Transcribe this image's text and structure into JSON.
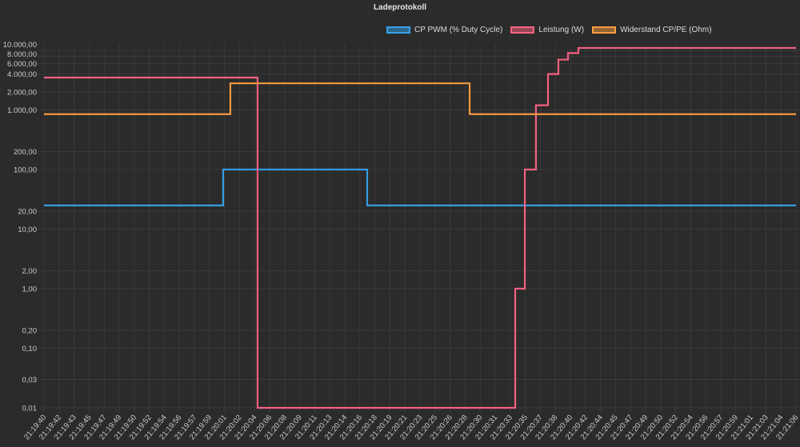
{
  "chart_data": {
    "type": "line",
    "title": "Ladeprotokoll",
    "yscale": "log",
    "ylim": [
      0.01,
      10000
    ],
    "y_ticks": [
      {
        "v": 10000,
        "label": "10.000,00"
      },
      {
        "v": 8000,
        "label": "8.000,00"
      },
      {
        "v": 6000,
        "label": "6.000,00"
      },
      {
        "v": 4000,
        "label": "4.000,00"
      },
      {
        "v": 2000,
        "label": "2.000,00"
      },
      {
        "v": 1000,
        "label": "1.000,00"
      },
      {
        "v": 200,
        "label": "200,00"
      },
      {
        "v": 100,
        "label": "100,00"
      },
      {
        "v": 20,
        "label": "20,00"
      },
      {
        "v": 10,
        "label": "10,00"
      },
      {
        "v": 2,
        "label": "2,00"
      },
      {
        "v": 1,
        "label": "1,00"
      },
      {
        "v": 0.2,
        "label": "0,20"
      },
      {
        "v": 0.1,
        "label": "0,10"
      },
      {
        "v": 0.03,
        "label": "0,03"
      },
      {
        "v": 0.01,
        "label": "0,01"
      }
    ],
    "x_labels": [
      "21:19:40",
      "21:19:42",
      "21:19:43",
      "21:19:45",
      "21:19:47",
      "21:19:49",
      "21:19:50",
      "21:19:52",
      "21:19:54",
      "21:19:56",
      "21:19:57",
      "21:19:59",
      "21:20:01",
      "21:20:02",
      "21:20:04",
      "21:20:06",
      "21:20:08",
      "21:20:09",
      "21:20:11",
      "21:20:13",
      "21:20:14",
      "21:20:16",
      "21:20:18",
      "21:20:19",
      "21:20:21",
      "21:20:23",
      "21:20:25",
      "21:20:26",
      "21:20:28",
      "21:20:30",
      "21:20:31",
      "21:20:33",
      "21:20:35",
      "21:20:37",
      "21:20:38",
      "21:20:40",
      "21:20:42",
      "21:20:44",
      "21:20:45",
      "21:20:47",
      "21:20:49",
      "21:20:50",
      "21:20:52",
      "21:20:54",
      "21:20:56",
      "21:20:57",
      "21:20:59",
      "21:21:01",
      "21:21:03",
      "21:21:04",
      "21:21:06"
    ],
    "series": [
      {
        "name": "CP PWM (% Duty Cycle)",
        "color": "#36a2eb",
        "steps": [
          [
            0,
            25
          ],
          [
            11.91,
            100
          ],
          [
            21.49,
            25
          ],
          [
            50,
            25
          ]
        ]
      },
      {
        "name": "Leistung (W)",
        "color": "#ff6384",
        "steps": [
          [
            0,
            3500
          ],
          [
            14.2,
            0.01
          ],
          [
            31.33,
            1
          ],
          [
            31.97,
            100
          ],
          [
            32.71,
            1200
          ],
          [
            33.51,
            4000
          ],
          [
            34.2,
            7000
          ],
          [
            34.84,
            9000
          ],
          [
            35.53,
            11000
          ],
          [
            50,
            11000
          ]
        ]
      },
      {
        "name": "Widerstand CP/PE (Ohm)",
        "color": "#ff9f40",
        "steps": [
          [
            0,
            850
          ],
          [
            12.39,
            2800
          ],
          [
            28.3,
            850
          ],
          [
            50,
            850
          ]
        ]
      }
    ],
    "legend_position": "top"
  }
}
